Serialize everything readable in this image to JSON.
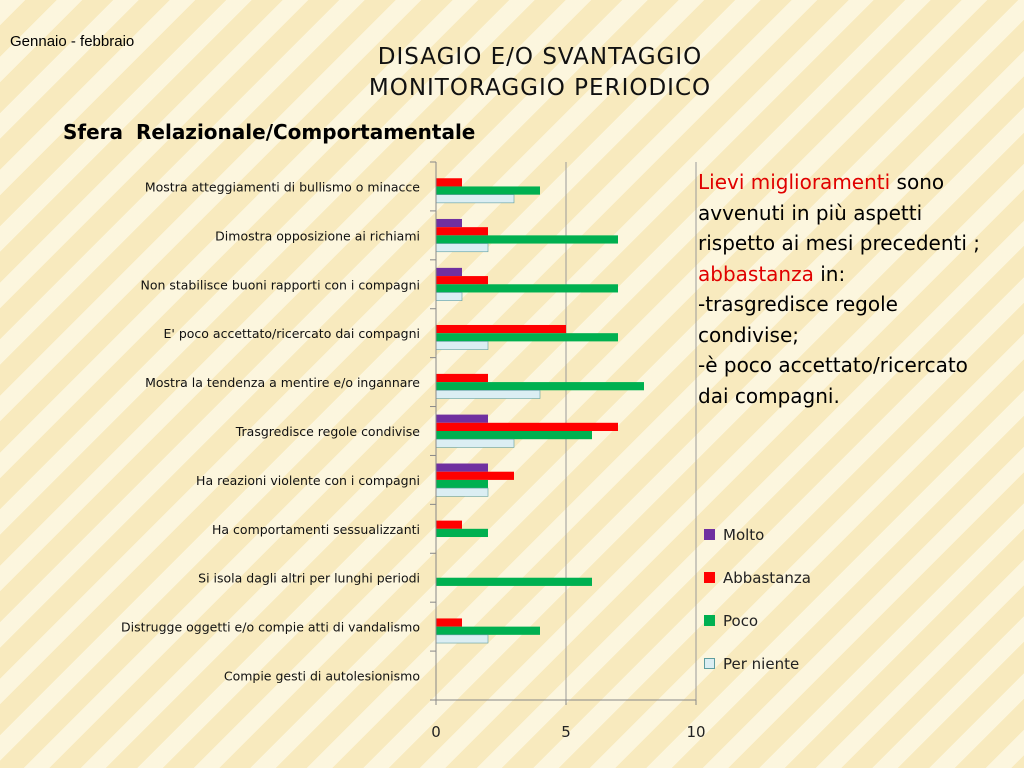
{
  "header": {
    "period": "Gennaio - febbraio",
    "title_line1": "DISAGIO E/O SVANTAGGIO",
    "title_line2": "MONITORAGGIO PERIODICO",
    "subtitle": "Sfera Relazionale/Comportamentale"
  },
  "note": {
    "p1_red": "Lievi miglioramenti",
    "p1_rest": " sono avvenuti in più aspetti rispetto ai mesi precedenti ;",
    "p2_red": "abbastanza",
    "p2_rest": " in:",
    "item1": "-trasgredisce regole condivise;",
    "item2": "-è poco accettato/ricercato dai compagni."
  },
  "chart_data": {
    "type": "bar",
    "orientation": "horizontal",
    "categories": [
      "Mostra atteggiamenti di bullismo o minacce",
      "Dimostra opposizione ai richiami",
      "Non stabilisce buoni rapporti con i compagni",
      "E' poco accettato/ricercato dai compagni",
      "Mostra la tendenza a mentire e/o ingannare",
      "Trasgredisce regole condivise",
      "Ha reazioni violente con i compagni",
      "Ha comportamenti sessualizzanti",
      "Si isola dagli altri per lunghi periodi",
      "Distrugge oggetti e/o compie atti di vandalismo",
      "Compie gesti di autolesionismo"
    ],
    "series": [
      {
        "name": "Molto",
        "color": "#7030a0",
        "values": [
          0,
          1,
          1,
          0,
          0,
          2,
          2,
          0,
          0,
          0,
          0
        ]
      },
      {
        "name": "Abbastanza",
        "color": "#ff0000",
        "values": [
          1,
          2,
          2,
          5,
          2,
          7,
          3,
          1,
          0,
          1,
          0
        ]
      },
      {
        "name": "Poco",
        "color": "#00b050",
        "values": [
          4,
          7,
          7,
          7,
          8,
          6,
          2,
          2,
          6,
          4,
          0
        ]
      },
      {
        "name": "Per niente",
        "color": "#dbeef3",
        "values": [
          3,
          2,
          1,
          2,
          4,
          3,
          2,
          0,
          0,
          2,
          0
        ]
      }
    ],
    "xlim": [
      0,
      10
    ],
    "xticks": [
      "0",
      "5",
      "10"
    ],
    "grid": true,
    "legend_position": "right"
  }
}
